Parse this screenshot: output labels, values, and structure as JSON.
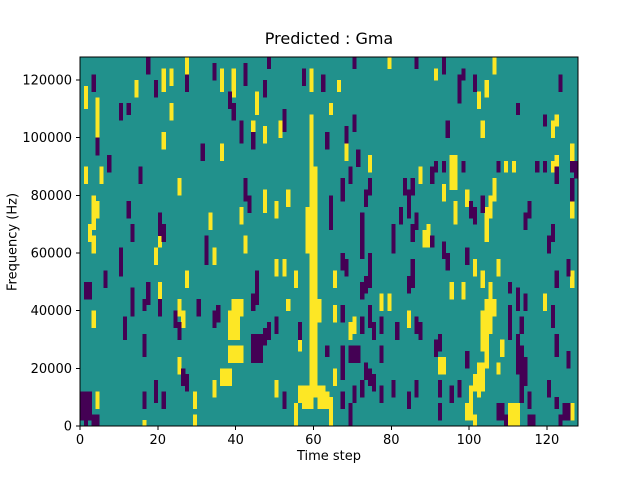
{
  "figure": {
    "background": "#ffffff"
  },
  "chart_data": {
    "type": "heatmap",
    "title": "Predicted : Gma",
    "xlabel": "Time step",
    "ylabel": "Frequency (Hz)",
    "xlim": [
      0,
      128
    ],
    "ylim": [
      0,
      128000
    ],
    "x_ticks": [
      0,
      20,
      40,
      60,
      80,
      100,
      120
    ],
    "y_ticks": [
      0,
      20000,
      40000,
      60000,
      80000,
      100000,
      120000
    ],
    "grid_cols": 128,
    "grid_rows": 64,
    "legend": "none",
    "grid_lines": "off",
    "colors": {
      "mid": "#21918c",
      "high": "#fde725",
      "low": "#440154",
      "axis": "#000000"
    },
    "cell_encoding": "runs [col, rowStart, rowEnd] inclusive; row 0 = top band (~128000 Hz), col 0 = time step 0; all other cells are mid color",
    "cells_high": [
      [
        1,
        5,
        8
      ],
      [
        1,
        19,
        21
      ],
      [
        2,
        29,
        31
      ],
      [
        3,
        24,
        29
      ],
      [
        3,
        31,
        33
      ],
      [
        3,
        44,
        46
      ],
      [
        4,
        7,
        13
      ],
      [
        4,
        25,
        27
      ],
      [
        4,
        58,
        60
      ],
      [
        5,
        19,
        21
      ],
      [
        14,
        4,
        6
      ],
      [
        16,
        63,
        63
      ],
      [
        19,
        33,
        35
      ],
      [
        20,
        30,
        32
      ],
      [
        20,
        39,
        41
      ],
      [
        21,
        2,
        5
      ],
      [
        21,
        13,
        15
      ],
      [
        23,
        2,
        4
      ],
      [
        23,
        8,
        10
      ],
      [
        25,
        21,
        23
      ],
      [
        25,
        42,
        44
      ],
      [
        25,
        52,
        54
      ],
      [
        26,
        44,
        46
      ],
      [
        27,
        0,
        2
      ],
      [
        27,
        37,
        39
      ],
      [
        29,
        58,
        60
      ],
      [
        29,
        62,
        63
      ],
      [
        33,
        27,
        29
      ],
      [
        34,
        33,
        35
      ],
      [
        34,
        56,
        58
      ],
      [
        36,
        2,
        5
      ],
      [
        36,
        15,
        17
      ],
      [
        36,
        54,
        56
      ],
      [
        37,
        54,
        56
      ],
      [
        38,
        44,
        48
      ],
      [
        38,
        50,
        52
      ],
      [
        38,
        54,
        56
      ],
      [
        39,
        2,
        6
      ],
      [
        39,
        42,
        48
      ],
      [
        39,
        50,
        52
      ],
      [
        40,
        42,
        48
      ],
      [
        40,
        50,
        52
      ],
      [
        41,
        26,
        28
      ],
      [
        41,
        42,
        44
      ],
      [
        41,
        50,
        52
      ],
      [
        42,
        31,
        33
      ],
      [
        44,
        11,
        14
      ],
      [
        45,
        6,
        9
      ],
      [
        47,
        12,
        14
      ],
      [
        47,
        23,
        26
      ],
      [
        50,
        25,
        27
      ],
      [
        50,
        35,
        37
      ],
      [
        50,
        56,
        58
      ],
      [
        51,
        11,
        13
      ],
      [
        52,
        35,
        37
      ],
      [
        53,
        23,
        25
      ],
      [
        53,
        42,
        43
      ],
      [
        55,
        37,
        39
      ],
      [
        55,
        60,
        63
      ],
      [
        56,
        48,
        50
      ],
      [
        56,
        57,
        59
      ],
      [
        57,
        57,
        60
      ],
      [
        58,
        26,
        33
      ],
      [
        58,
        57,
        60
      ],
      [
        59,
        2,
        5
      ],
      [
        59,
        10,
        60
      ],
      [
        60,
        19,
        58
      ],
      [
        61,
        42,
        45
      ],
      [
        61,
        57,
        60
      ],
      [
        62,
        57,
        60
      ],
      [
        63,
        58,
        60
      ],
      [
        64,
        8,
        9
      ],
      [
        64,
        59,
        63
      ],
      [
        65,
        37,
        39
      ],
      [
        65,
        43,
        45
      ],
      [
        65,
        54,
        56
      ],
      [
        66,
        4,
        5
      ],
      [
        68,
        15,
        17
      ],
      [
        69,
        46,
        48
      ],
      [
        70,
        45,
        47
      ],
      [
        74,
        17,
        19
      ],
      [
        77,
        41,
        43
      ],
      [
        79,
        0,
        1
      ],
      [
        79,
        41,
        43
      ],
      [
        84,
        44,
        46
      ],
      [
        87,
        19,
        21
      ],
      [
        88,
        30,
        32
      ],
      [
        89,
        29,
        32
      ],
      [
        91,
        2,
        3
      ],
      [
        92,
        52,
        54
      ],
      [
        93,
        22,
        24
      ],
      [
        93,
        52,
        54
      ],
      [
        95,
        17,
        22
      ],
      [
        95,
        39,
        41
      ],
      [
        96,
        17,
        22
      ],
      [
        96,
        25,
        28
      ],
      [
        98,
        39,
        41
      ],
      [
        99,
        23,
        25
      ],
      [
        99,
        60,
        62
      ],
      [
        100,
        57,
        62
      ],
      [
        101,
        35,
        37
      ],
      [
        101,
        55,
        57
      ],
      [
        101,
        62,
        63
      ],
      [
        102,
        6,
        8
      ],
      [
        102,
        53,
        58
      ],
      [
        103,
        11,
        13
      ],
      [
        103,
        37,
        39
      ],
      [
        103,
        44,
        50
      ],
      [
        103,
        53,
        57
      ],
      [
        104,
        4,
        6
      ],
      [
        104,
        26,
        31
      ],
      [
        104,
        42,
        53
      ],
      [
        105,
        24,
        27
      ],
      [
        105,
        39,
        47
      ],
      [
        106,
        0,
        2
      ],
      [
        106,
        21,
        24
      ],
      [
        106,
        42,
        44
      ],
      [
        107,
        35,
        37
      ],
      [
        107,
        53,
        54
      ],
      [
        108,
        49,
        51
      ],
      [
        109,
        18,
        19
      ],
      [
        110,
        60,
        63
      ],
      [
        111,
        18,
        19
      ],
      [
        111,
        60,
        63
      ],
      [
        112,
        60,
        63
      ],
      [
        119,
        41,
        43
      ],
      [
        121,
        11,
        13
      ],
      [
        121,
        18,
        19
      ],
      [
        122,
        10,
        11
      ],
      [
        122,
        17,
        19
      ],
      [
        126,
        15,
        17
      ],
      [
        126,
        25,
        27
      ],
      [
        126,
        37,
        39
      ],
      [
        126,
        60,
        62
      ]
    ],
    "cells_low": [
      [
        0,
        58,
        62
      ],
      [
        1,
        39,
        41
      ],
      [
        1,
        58,
        63
      ],
      [
        2,
        39,
        41
      ],
      [
        2,
        58,
        62
      ],
      [
        3,
        3,
        5
      ],
      [
        3,
        62,
        63
      ],
      [
        4,
        14,
        16
      ],
      [
        4,
        62,
        63
      ],
      [
        6,
        37,
        39
      ],
      [
        7,
        17,
        19
      ],
      [
        10,
        8,
        10
      ],
      [
        10,
        33,
        37
      ],
      [
        11,
        45,
        48
      ],
      [
        12,
        8,
        9
      ],
      [
        12,
        25,
        27
      ],
      [
        13,
        29,
        31
      ],
      [
        13,
        40,
        44
      ],
      [
        15,
        19,
        21
      ],
      [
        16,
        42,
        43
      ],
      [
        16,
        48,
        51
      ],
      [
        16,
        58,
        60
      ],
      [
        17,
        0,
        2
      ],
      [
        17,
        39,
        42
      ],
      [
        19,
        4,
        6
      ],
      [
        19,
        56,
        59
      ],
      [
        20,
        27,
        30
      ],
      [
        20,
        42,
        44
      ],
      [
        21,
        29,
        31
      ],
      [
        21,
        58,
        60
      ],
      [
        24,
        44,
        46
      ],
      [
        25,
        46,
        48
      ],
      [
        26,
        54,
        56
      ],
      [
        27,
        3,
        5
      ],
      [
        27,
        55,
        57
      ],
      [
        30,
        42,
        44
      ],
      [
        31,
        15,
        17
      ],
      [
        32,
        31,
        35
      ],
      [
        34,
        1,
        3
      ],
      [
        34,
        44,
        46
      ],
      [
        35,
        43,
        45
      ],
      [
        38,
        6,
        8
      ],
      [
        39,
        8,
        10
      ],
      [
        41,
        11,
        14
      ],
      [
        42,
        1,
        4
      ],
      [
        42,
        21,
        24
      ],
      [
        43,
        24,
        26
      ],
      [
        44,
        13,
        15
      ],
      [
        44,
        41,
        43
      ],
      [
        44,
        48,
        52
      ],
      [
        45,
        37,
        42
      ],
      [
        45,
        48,
        52
      ],
      [
        46,
        48,
        52
      ],
      [
        47,
        4,
        6
      ],
      [
        47,
        47,
        49
      ],
      [
        48,
        0,
        1
      ],
      [
        48,
        46,
        48
      ],
      [
        50,
        45,
        47
      ],
      [
        52,
        9,
        12
      ],
      [
        52,
        58,
        60
      ],
      [
        56,
        46,
        48
      ],
      [
        57,
        2,
        4
      ],
      [
        62,
        3,
        5
      ],
      [
        63,
        13,
        15
      ],
      [
        63,
        50,
        51
      ],
      [
        64,
        24,
        29
      ],
      [
        67,
        21,
        24
      ],
      [
        67,
        34,
        36
      ],
      [
        67,
        43,
        45
      ],
      [
        67,
        50,
        55
      ],
      [
        67,
        58,
        60
      ],
      [
        68,
        12,
        14
      ],
      [
        68,
        35,
        37
      ],
      [
        69,
        19,
        21
      ],
      [
        69,
        50,
        52
      ],
      [
        69,
        60,
        63
      ],
      [
        70,
        0,
        1
      ],
      [
        70,
        10,
        12
      ],
      [
        70,
        50,
        52
      ],
      [
        70,
        57,
        59
      ],
      [
        71,
        16,
        18
      ],
      [
        71,
        50,
        52
      ],
      [
        72,
        27,
        34
      ],
      [
        72,
        39,
        41
      ],
      [
        72,
        45,
        47
      ],
      [
        72,
        56,
        58
      ],
      [
        73,
        23,
        25
      ],
      [
        73,
        38,
        40
      ],
      [
        73,
        53,
        55
      ],
      [
        74,
        21,
        23
      ],
      [
        74,
        34,
        39
      ],
      [
        74,
        43,
        46
      ],
      [
        74,
        54,
        56
      ],
      [
        75,
        46,
        48
      ],
      [
        75,
        55,
        57
      ],
      [
        77,
        45,
        47
      ],
      [
        77,
        50,
        52
      ],
      [
        77,
        57,
        59
      ],
      [
        80,
        29,
        33
      ],
      [
        80,
        56,
        58
      ],
      [
        81,
        46,
        48
      ],
      [
        82,
        26,
        28
      ],
      [
        83,
        21,
        23
      ],
      [
        84,
        23,
        27
      ],
      [
        84,
        38,
        40
      ],
      [
        84,
        58,
        60
      ],
      [
        85,
        21,
        23
      ],
      [
        85,
        29,
        31
      ],
      [
        85,
        35,
        39
      ],
      [
        86,
        0,
        1
      ],
      [
        86,
        27,
        29
      ],
      [
        86,
        45,
        47
      ],
      [
        86,
        56,
        58
      ],
      [
        87,
        46,
        48
      ],
      [
        90,
        19,
        21
      ],
      [
        90,
        31,
        32
      ],
      [
        91,
        18,
        19
      ],
      [
        91,
        49,
        51
      ],
      [
        92,
        48,
        50
      ],
      [
        92,
        56,
        58
      ],
      [
        92,
        60,
        62
      ],
      [
        93,
        0,
        2
      ],
      [
        93,
        18,
        19
      ],
      [
        93,
        32,
        34
      ],
      [
        94,
        11,
        13
      ],
      [
        94,
        34,
        36
      ],
      [
        95,
        57,
        59
      ],
      [
        97,
        3,
        7
      ],
      [
        97,
        56,
        58
      ],
      [
        98,
        2,
        3
      ],
      [
        98,
        18,
        19
      ],
      [
        99,
        33,
        35
      ],
      [
        99,
        51,
        53
      ],
      [
        100,
        25,
        27
      ],
      [
        101,
        3,
        5
      ],
      [
        101,
        26,
        28
      ],
      [
        103,
        24,
        26
      ],
      [
        107,
        18,
        19
      ],
      [
        107,
        60,
        62
      ],
      [
        108,
        60,
        62
      ],
      [
        109,
        62,
        63
      ],
      [
        110,
        39,
        40
      ],
      [
        110,
        43,
        48
      ],
      [
        112,
        8,
        9
      ],
      [
        112,
        40,
        43
      ],
      [
        112,
        48,
        54
      ],
      [
        113,
        45,
        47
      ],
      [
        113,
        50,
        59
      ],
      [
        114,
        27,
        29
      ],
      [
        114,
        41,
        43
      ],
      [
        114,
        52,
        56
      ],
      [
        115,
        25,
        27
      ],
      [
        115,
        58,
        60
      ],
      [
        115,
        62,
        63
      ],
      [
        116,
        62,
        63
      ],
      [
        117,
        18,
        19
      ],
      [
        119,
        10,
        11
      ],
      [
        119,
        18,
        19
      ],
      [
        120,
        31,
        33
      ],
      [
        120,
        56,
        58
      ],
      [
        121,
        29,
        31
      ],
      [
        121,
        43,
        46
      ],
      [
        122,
        19,
        21
      ],
      [
        122,
        37,
        39
      ],
      [
        122,
        48,
        51
      ],
      [
        122,
        59,
        60
      ],
      [
        123,
        3,
        5
      ],
      [
        123,
        62,
        63
      ],
      [
        124,
        60,
        62
      ],
      [
        125,
        35,
        37
      ],
      [
        125,
        51,
        53
      ],
      [
        125,
        60,
        62
      ],
      [
        126,
        18,
        19
      ],
      [
        126,
        21,
        24
      ],
      [
        127,
        18,
        20
      ]
    ]
  }
}
